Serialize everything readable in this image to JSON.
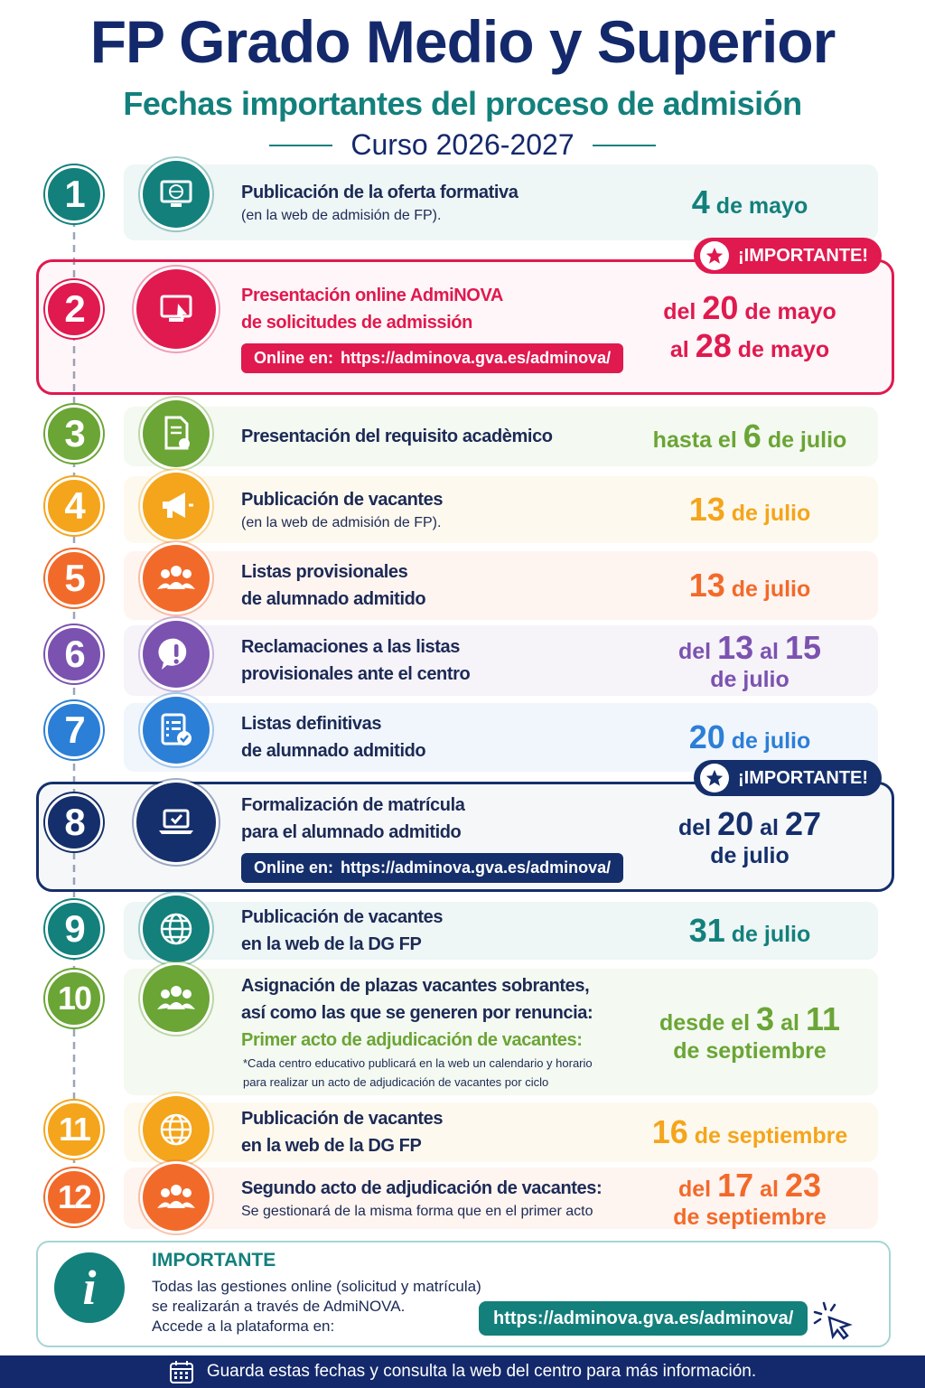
{
  "header": {
    "title": "FP Grado Medio y Superior",
    "subtitle": "Fechas importantes del proceso de admisión",
    "course": "Curso 2026-2027"
  },
  "steps": [
    {
      "num": "1",
      "color": "#13807c",
      "title": [
        "Publicación de la oferta formativa"
      ],
      "note": [
        "(en la web de admisión de FP)."
      ],
      "date": [
        [
          {
            "t": "4",
            "big": true
          },
          {
            "t": "de mayo"
          }
        ]
      ]
    },
    {
      "num": "2",
      "color": "#e0194f",
      "highlight": true,
      "badge": "¡IMPORTANTE!",
      "title": [
        "Presentación online AdmiNOVA",
        "de solicitudes de admissión"
      ],
      "link_label": "Online en:",
      "link_url": "https://adminova.gva.es/adminova/",
      "date": [
        [
          {
            "t": "del"
          },
          {
            "t": "20",
            "big": true
          },
          {
            "t": "de mayo"
          }
        ],
        [
          {
            "t": "al"
          },
          {
            "t": "28",
            "big": true
          },
          {
            "t": "de mayo"
          }
        ]
      ]
    },
    {
      "num": "3",
      "color": "#6aa535",
      "title": [
        "Presentación del requisito acadèmico"
      ],
      "date": [
        [
          {
            "t": "hasta el"
          },
          {
            "t": "6",
            "big": true
          },
          {
            "t": "de julio"
          }
        ]
      ]
    },
    {
      "num": "4",
      "color": "#f4a51c",
      "title": [
        "Publicación de vacantes"
      ],
      "note": [
        "(en la web de admisión de FP)."
      ],
      "date": [
        [
          {
            "t": "13",
            "big": true
          },
          {
            "t": "de julio"
          }
        ]
      ]
    },
    {
      "num": "5",
      "color": "#f26a2a",
      "title": [
        "Listas provisionales",
        "de alumnado admitido"
      ],
      "date": [
        [
          {
            "t": "13",
            "big": true
          },
          {
            "t": "de julio"
          }
        ]
      ]
    },
    {
      "num": "6",
      "color": "#7b52b0",
      "title": [
        "Reclamaciones a las listas",
        "provisionales ante el centro"
      ],
      "date": [
        [
          {
            "t": "del"
          },
          {
            "t": "13",
            "big": true
          },
          {
            "t": "al"
          },
          {
            "t": "15",
            "big": true
          }
        ],
        [
          {
            "t": "de julio"
          }
        ]
      ]
    },
    {
      "num": "7",
      "color": "#2c7fd6",
      "title": [
        "Listas definitivas",
        "de alumnado admitido"
      ],
      "date": [
        [
          {
            "t": "20",
            "big": true
          },
          {
            "t": "de julio"
          }
        ]
      ]
    },
    {
      "num": "8",
      "color": "#142f6b",
      "highlight": true,
      "badge": "¡IMPORTANTE!",
      "title": [
        "Formalización de matrícula",
        "para el alumnado admitido"
      ],
      "link_label": "Online en:",
      "link_url": "https://adminova.gva.es/adminova/",
      "date": [
        [
          {
            "t": "del"
          },
          {
            "t": "20",
            "big": true
          },
          {
            "t": "al"
          },
          {
            "t": "27",
            "big": true
          }
        ],
        [
          {
            "t": "de julio"
          }
        ]
      ]
    },
    {
      "num": "9",
      "color": "#13807c",
      "title": [
        "Publicación de vacantes",
        "en la web de la DG FP"
      ],
      "date": [
        [
          {
            "t": "31",
            "big": true
          },
          {
            "t": "de julio"
          }
        ]
      ]
    },
    {
      "num": "10",
      "color": "#6aa535",
      "title": [
        "Asignación de plazas vacantes sobrantes,",
        "así como las que se generen por renuncia:"
      ],
      "subtitle": "Primer acto de adjudicación de vacantes:",
      "note": [
        "*Cada centro educativo publicará en la web un calendario y horario",
        "para realizar un acto de adjudicación de vacantes por ciclo"
      ],
      "date": [
        [
          {
            "t": "desde el"
          },
          {
            "t": "3",
            "big": true
          },
          {
            "t": "al"
          },
          {
            "t": "11",
            "big": true
          }
        ],
        [
          {
            "t": "de septiembre"
          }
        ]
      ]
    },
    {
      "num": "11",
      "color": "#f4a51c",
      "title": [
        "Publicación de vacantes",
        "en la web de la DG FP"
      ],
      "date": [
        [
          {
            "t": "16",
            "big": true
          },
          {
            "t": "de septiembre"
          }
        ]
      ]
    },
    {
      "num": "12",
      "color": "#f26a2a",
      "title": [
        "Segundo acto de adjudicación de vacantes:"
      ],
      "note": [
        "Se gestionará de la misma forma que en el primer acto"
      ],
      "date": [
        [
          {
            "t": "del"
          },
          {
            "t": "17",
            "big": true
          },
          {
            "t": "al"
          },
          {
            "t": "23",
            "big": true
          }
        ],
        [
          {
            "t": "de septiembre"
          }
        ]
      ]
    }
  ],
  "info": {
    "heading": "IMPORTANTE",
    "lines": [
      "Todas las gestiones online (solicitud y matrícula)",
      "se realizarán a través de AdmiNOVA.",
      "Accede a la plataforma en:"
    ],
    "url": "https://adminova.gva.es/adminova/"
  },
  "footer": "Guarda estas fechas y consulta la web del centro para más información."
}
